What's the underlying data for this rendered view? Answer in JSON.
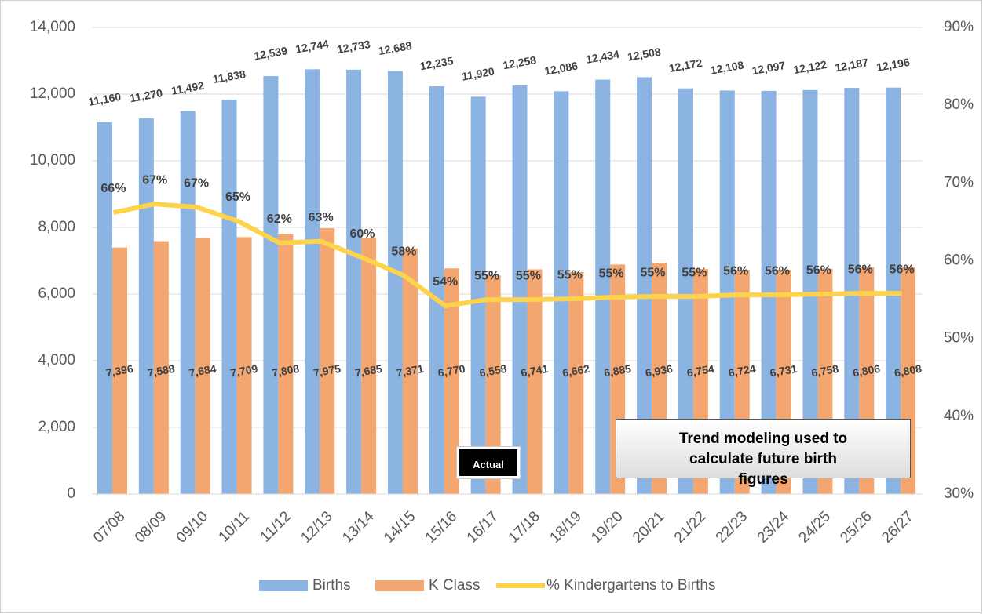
{
  "chart_data": {
    "type": "bar",
    "categories": [
      "07/08",
      "08/09",
      "09/10",
      "10/11",
      "11/12",
      "12/13",
      "13/14",
      "14/15",
      "15/16",
      "16/17",
      "17/18",
      "18/19",
      "19/20",
      "20/21",
      "21/22",
      "22/23",
      "23/24",
      "24/25",
      "25/26",
      "26/27"
    ],
    "series": [
      {
        "name": "Births",
        "color": "#8cb4e2",
        "type": "bar",
        "values": [
          11160,
          11270,
          11492,
          11838,
          12539,
          12744,
          12733,
          12688,
          12235,
          11920,
          12258,
          12086,
          12434,
          12508,
          12172,
          12108,
          12097,
          12122,
          12187,
          12196
        ],
        "value_labels": [
          "11,160",
          "11,270",
          "11,492",
          "11,838",
          "12,539",
          "12,744",
          "12,733",
          "12,688",
          "12,235",
          "11,920",
          "12,258",
          "12,086",
          "12,434",
          "12,508",
          "12,172",
          "12,108",
          "12,097",
          "12,122",
          "12,187",
          "12,196"
        ]
      },
      {
        "name": "K Class",
        "color": "#f4a670",
        "type": "bar",
        "values": [
          7396,
          7588,
          7684,
          7709,
          7808,
          7975,
          7685,
          7371,
          6770,
          6558,
          6741,
          6662,
          6885,
          6936,
          6754,
          6724,
          6731,
          6758,
          6806,
          6808
        ],
        "value_labels": [
          "7,396",
          "7,588",
          "7,684",
          "7,709",
          "7,808",
          "7,975",
          "7,685",
          "7,371",
          "6,770",
          "6,558",
          "6,741",
          "6,662",
          "6,885",
          "6,936",
          "6,754",
          "6,724",
          "6,731",
          "6,758",
          "6,806",
          "6,808"
        ]
      },
      {
        "name": "% Kindergartens to Births",
        "color": "#fdd34a",
        "type": "line",
        "axis": "y2",
        "values": [
          66.2,
          67.3,
          66.9,
          65.1,
          62.3,
          62.5,
          60.4,
          58.1,
          54.2,
          55.0,
          55.0,
          55.1,
          55.3,
          55.4,
          55.4,
          55.6,
          55.6,
          55.7,
          55.8,
          55.8
        ],
        "value_labels": [
          "66%",
          "67%",
          "67%",
          "65%",
          "62%",
          "63%",
          "60%",
          "58%",
          "54%",
          "55%",
          "55%",
          "55%",
          "55%",
          "55%",
          "55%",
          "56%",
          "56%",
          "56%",
          "56%",
          "56%"
        ]
      }
    ],
    "ylim": [
      0,
      14000
    ],
    "yticks": [
      0,
      {
        "value": 2000,
        "label": "2,000"
      },
      {
        "value": 4000,
        "label": "4,000"
      },
      {
        "value": 6000,
        "label": "6,000"
      },
      {
        "value": 8000,
        "label": "8,000"
      },
      {
        "value": 10000,
        "label": "10,000"
      },
      {
        "value": 12000,
        "label": "12,000"
      },
      {
        "value": 14000,
        "label": "14,000"
      }
    ],
    "y2lim": [
      30,
      90
    ],
    "y2ticks": [
      {
        "value": 30,
        "label": "30%"
      },
      {
        "value": 40,
        "label": "40%"
      },
      {
        "value": 50,
        "label": "50%"
      },
      {
        "value": 60,
        "label": "60%"
      },
      {
        "value": 70,
        "label": "70%"
      },
      {
        "value": 80,
        "label": "80%"
      },
      {
        "value": 90,
        "label": "90%"
      }
    ],
    "grid": true,
    "legend": "bottom",
    "annotations": [
      "Actual",
      "Trend modeling used to calculate future birth figures"
    ]
  }
}
